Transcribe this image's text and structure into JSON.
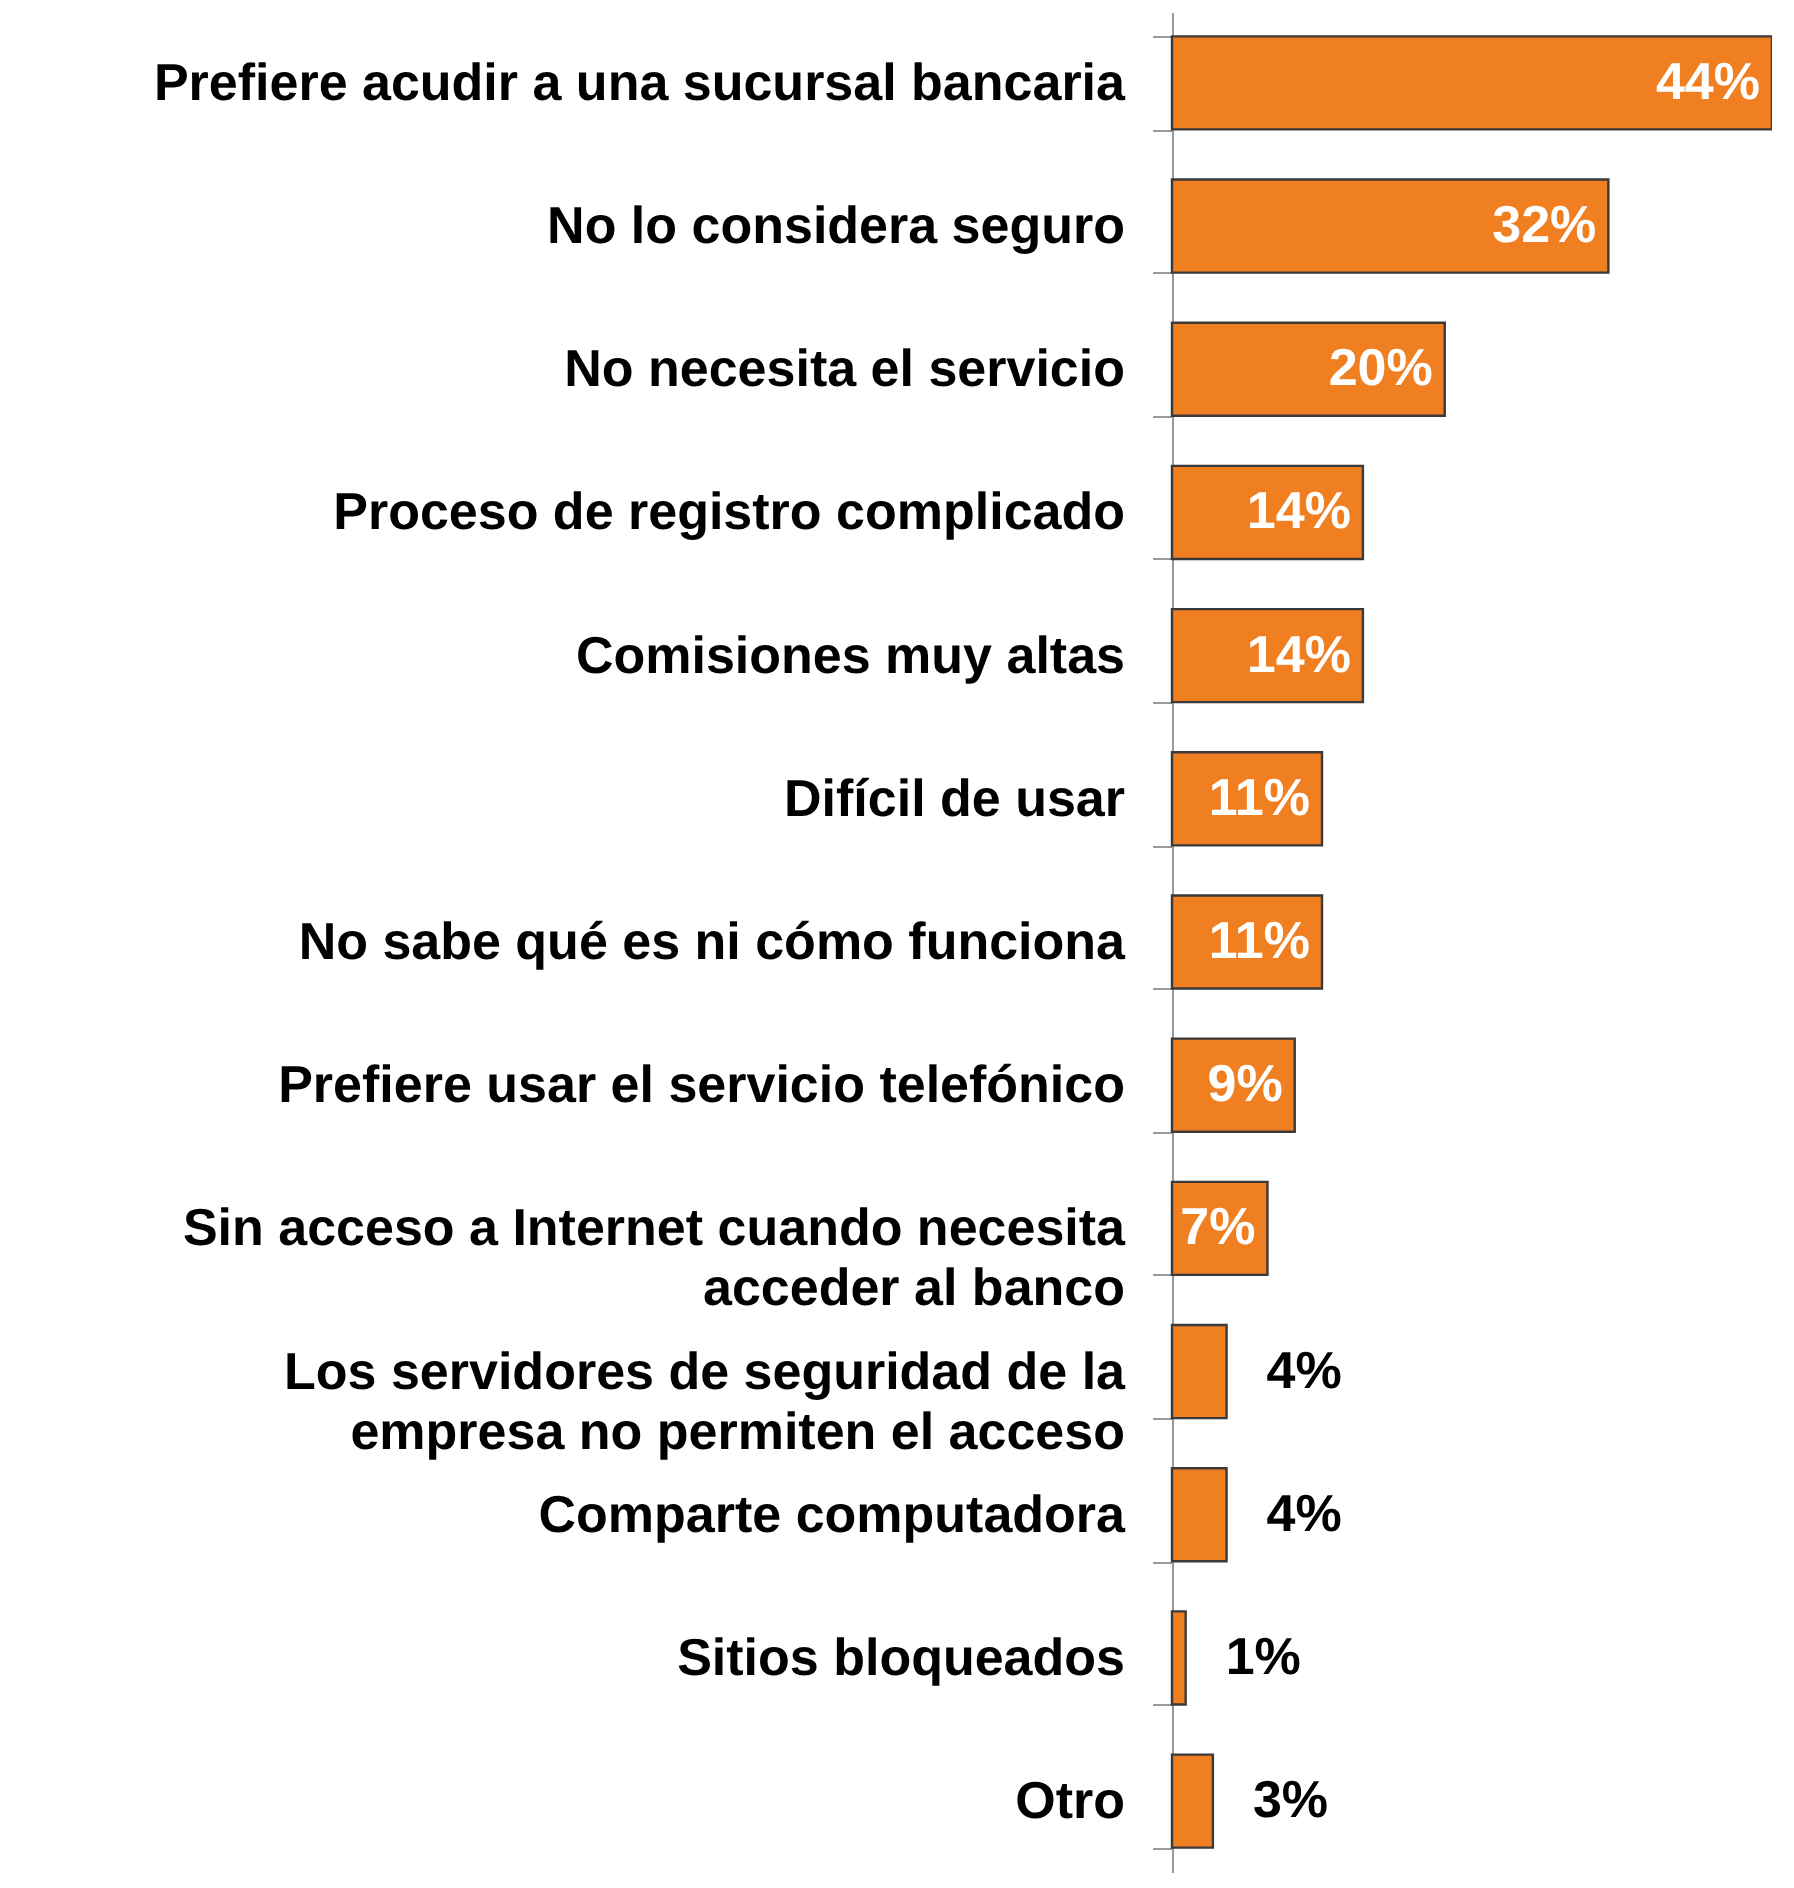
{
  "chart_data": {
    "type": "bar",
    "orientation": "horizontal",
    "categories": [
      "Prefiere acudir a una sucursal bancaria",
      "No lo considera seguro",
      "No necesita el servicio",
      "Proceso de registro complicado",
      "Comisiones muy altas",
      "Difícil de usar",
      "No sabe qué es ni cómo funciona",
      "Prefiere usar el servicio telefónico",
      "Sin acceso a Internet cuando necesita acceder al banco",
      "Los servidores de seguridad de la empresa no permiten el acceso",
      "Comparte computadora",
      "Sitios bloqueados",
      "Otro"
    ],
    "values": [
      44,
      32,
      20,
      14,
      14,
      11,
      11,
      9,
      7,
      4,
      4,
      1,
      3
    ],
    "value_labels": [
      "44%",
      "32%",
      "20%",
      "14%",
      "14%",
      "11%",
      "11%",
      "9%",
      "7%",
      "4%",
      "4%",
      "1%",
      "3%"
    ],
    "color": "#f07f22",
    "grid": false
  }
}
